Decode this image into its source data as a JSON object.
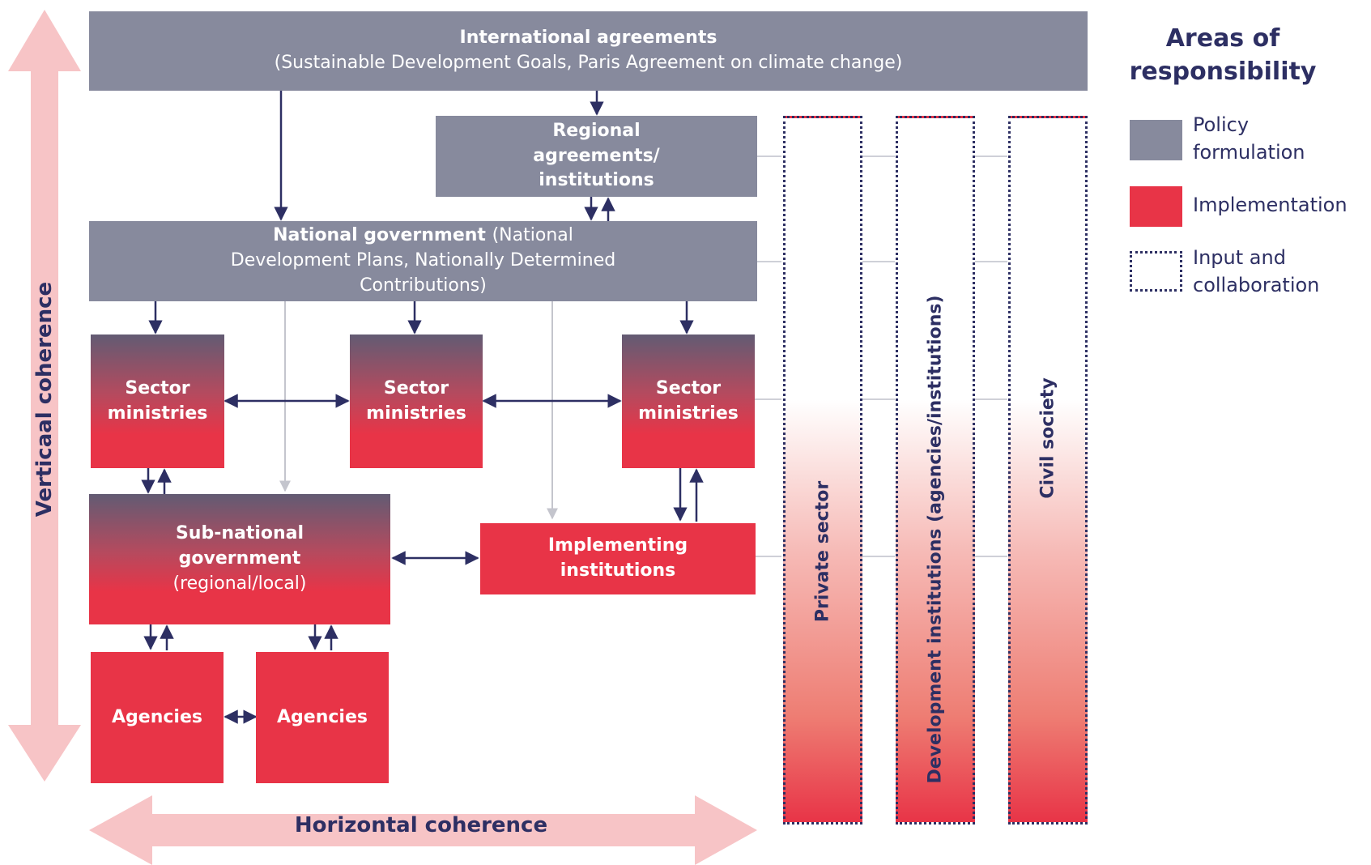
{
  "diagram": {
    "nodes": {
      "international": {
        "title": "International agreements",
        "subtitle": "(Sustainable Development Goals, Paris Agreement on climate change)"
      },
      "regional": {
        "title": "Regional agreements/ institutions"
      },
      "national": {
        "title": "National government",
        "subtitle": "(National Development Plans, Nationally Determined Contributions)"
      },
      "sector_1": {
        "title": "Sector ministries"
      },
      "sector_2": {
        "title": "Sector ministries"
      },
      "sector_3": {
        "title": "Sector ministries"
      },
      "subnational": {
        "title": "Sub-national government",
        "subtitle": "(regional/local)"
      },
      "implementing": {
        "title": "Implementing institutions"
      },
      "agencies_1": {
        "title": "Agencies"
      },
      "agencies_2": {
        "title": "Agencies"
      }
    },
    "columns": {
      "private": "Private sector",
      "development": "Development institutions (agencies/institutions)",
      "civil": "Civil society"
    },
    "axes": {
      "vertical": "Verticaal coherence",
      "horizontal": "Horizontal coherence"
    },
    "legend": {
      "title": "Areas of responsibility",
      "items": [
        {
          "label": "Policy formulation",
          "kind": "fill",
          "color": "#878a9d"
        },
        {
          "label": "Implementation",
          "kind": "fill",
          "color": "#e83447"
        },
        {
          "label": "Input and collaboration",
          "kind": "dotted",
          "color": "#2d2f63"
        }
      ]
    },
    "colors": {
      "policy": "#878a9d",
      "implementation": "#e83447",
      "text_dark": "#2d2f63",
      "coherence_arrow": "#f7c4c6",
      "connector": "#cfd0d8"
    }
  }
}
